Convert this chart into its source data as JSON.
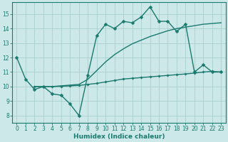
{
  "line1_x": [
    0,
    1,
    2,
    3,
    4,
    5,
    6,
    7,
    8,
    9,
    10,
    11,
    12,
    13,
    14,
    15,
    16,
    17,
    18,
    19,
    20,
    21,
    22,
    23
  ],
  "line1_y": [
    12.0,
    10.5,
    9.8,
    10.0,
    9.5,
    9.4,
    8.8,
    8.0,
    10.8,
    13.5,
    14.3,
    14.0,
    14.5,
    14.4,
    14.8,
    15.5,
    14.5,
    14.5,
    13.8,
    14.3,
    11.0,
    11.5,
    11.0,
    11.0
  ],
  "line2_x": [
    2,
    3,
    4,
    5,
    6,
    7,
    8,
    9,
    10,
    11,
    12,
    13,
    14,
    15,
    16,
    17,
    18,
    19,
    20,
    21,
    22,
    23
  ],
  "line2_y": [
    10.0,
    10.0,
    10.0,
    10.02,
    10.05,
    10.08,
    10.15,
    10.22,
    10.32,
    10.42,
    10.52,
    10.57,
    10.62,
    10.67,
    10.72,
    10.77,
    10.82,
    10.87,
    10.93,
    11.0,
    11.05,
    11.0
  ],
  "line3_x": [
    2,
    3,
    4,
    5,
    6,
    7,
    8,
    9,
    10,
    11,
    12,
    13,
    14,
    15,
    16,
    17,
    18,
    19,
    20,
    21,
    22,
    23
  ],
  "line3_y": [
    10.0,
    10.0,
    10.0,
    10.05,
    10.1,
    10.15,
    10.5,
    11.1,
    11.7,
    12.2,
    12.6,
    12.95,
    13.2,
    13.45,
    13.65,
    13.85,
    14.0,
    14.1,
    14.2,
    14.3,
    14.35,
    14.4
  ],
  "line_color": "#1a7a6e",
  "bg_color": "#cce8e8",
  "grid_color": "#aacfcf",
  "xlabel": "Humidex (Indice chaleur)",
  "xlim": [
    -0.5,
    23.5
  ],
  "ylim": [
    7.5,
    15.8
  ],
  "yticks": [
    8,
    9,
    10,
    11,
    12,
    13,
    14,
    15
  ],
  "xticks": [
    0,
    1,
    2,
    3,
    4,
    5,
    6,
    7,
    8,
    9,
    10,
    11,
    12,
    13,
    14,
    15,
    16,
    17,
    18,
    19,
    20,
    21,
    22,
    23
  ],
  "marker_size": 2.5,
  "line_width": 1.0
}
